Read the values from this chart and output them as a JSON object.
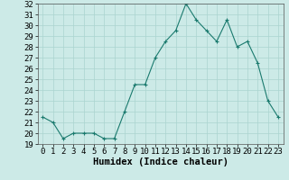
{
  "x": [
    0,
    1,
    2,
    3,
    4,
    5,
    6,
    7,
    8,
    9,
    10,
    11,
    12,
    13,
    14,
    15,
    16,
    17,
    18,
    19,
    20,
    21,
    22,
    23
  ],
  "y": [
    21.5,
    21.0,
    19.5,
    20.0,
    20.0,
    20.0,
    19.5,
    19.5,
    22.0,
    24.5,
    24.5,
    27.0,
    28.5,
    29.5,
    32.0,
    30.5,
    29.5,
    28.5,
    30.5,
    28.0,
    28.5,
    26.5,
    23.0,
    21.5
  ],
  "xlabel": "Humidex (Indice chaleur)",
  "ylim": [
    19,
    32
  ],
  "xlim": [
    -0.5,
    23.5
  ],
  "yticks": [
    19,
    20,
    21,
    22,
    23,
    24,
    25,
    26,
    27,
    28,
    29,
    30,
    31,
    32
  ],
  "xticks": [
    0,
    1,
    2,
    3,
    4,
    5,
    6,
    7,
    8,
    9,
    10,
    11,
    12,
    13,
    14,
    15,
    16,
    17,
    18,
    19,
    20,
    21,
    22,
    23
  ],
  "line_color": "#1a7a6e",
  "marker": "+",
  "bg_color": "#cceae7",
  "grid_color": "#aad4d0",
  "tick_fontsize": 6.5,
  "label_fontsize": 7.5
}
